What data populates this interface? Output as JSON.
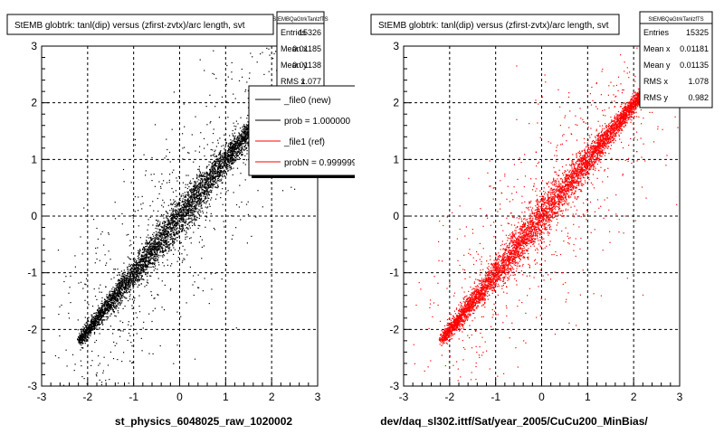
{
  "chart_data": [
    {
      "type": "scatter",
      "title": "StEMB globtrk: tanl(dip) versus (zfirst-zvtx)/arc length, svt",
      "xlabel": "st_physics_6048025_raw_1020002",
      "ylabel": "",
      "xlim": [
        -3,
        3
      ],
      "ylim": [
        -3,
        3
      ],
      "x_ticks": [
        "-3",
        "-2",
        "-1",
        "0",
        "1",
        "2",
        "3"
      ],
      "y_ticks": [
        "-3",
        "-2",
        "-1",
        "0",
        "1",
        "2",
        "3"
      ],
      "grid": true,
      "marker_color": "#000000",
      "series": [
        {
          "trend": {
            "x": [
              -2.2,
              2.2
            ],
            "y": [
              -2.2,
              2.2
            ]
          }
        }
      ],
      "stats": {
        "name": "StEMBQaGtrkTanlzfTS",
        "rows": [
          {
            "label": "Entries",
            "value": "15326"
          },
          {
            "label": "Mean x",
            "value": "0.01185"
          },
          {
            "label": "Mean y",
            "value": "0.01138"
          },
          {
            "label": "RMS x",
            "value": "1.077"
          }
        ]
      },
      "legend": {
        "placement": "top-right",
        "entries": [
          {
            "label": "_file0 (new)",
            "color": "#000000"
          },
          {
            "label": "prob = 1.000000",
            "color": "#000000"
          },
          {
            "label": "_file1 (ref)",
            "color": "#ff0000"
          },
          {
            "label": "probN = 0.999999",
            "color": "#ff0000"
          }
        ]
      }
    },
    {
      "type": "scatter",
      "title": "StEMB globtrk: tanl(dip) versus (zfirst-zvtx)/arc length, svt",
      "xlabel": "dev/daq_sl302.ittf/Sat/year_2005/CuCu200_MinBias/",
      "ylabel": "",
      "xlim": [
        -3,
        3
      ],
      "ylim": [
        -3,
        3
      ],
      "x_ticks": [
        "-3",
        "-2",
        "-1",
        "0",
        "1",
        "2",
        "3"
      ],
      "y_ticks": [
        "-3",
        "-2",
        "-1",
        "0",
        "1",
        "2",
        "3"
      ],
      "grid": true,
      "marker_color": "#ff0000",
      "series": [
        {
          "trend": {
            "x": [
              -2.2,
              2.2
            ],
            "y": [
              -2.2,
              2.2
            ]
          }
        }
      ],
      "stats": {
        "name": "StEMBQaGtrkTanlzfTS",
        "rows": [
          {
            "label": "Entries",
            "value": "15325"
          },
          {
            "label": "Mean x",
            "value": "0.01181"
          },
          {
            "label": "Mean y",
            "value": "0.01135"
          },
          {
            "label": "RMS x",
            "value": "1.078"
          },
          {
            "label": "RMS y",
            "value": "0.982"
          }
        ]
      }
    }
  ]
}
